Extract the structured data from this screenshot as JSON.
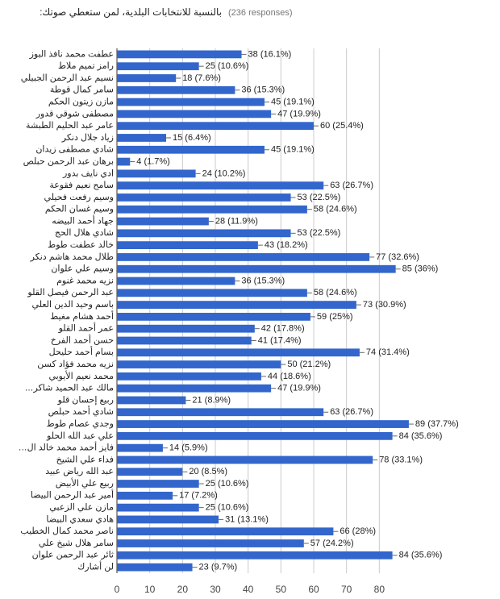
{
  "chart_data": {
    "type": "bar",
    "orientation": "horizontal",
    "title": "بالنسبة للانتخابات البلدية، لمن ستعطي صوتك:",
    "subtitle": "(236 responses)",
    "color": "#3366cc",
    "categories": [
      "عطفت محمد نافذ البوز",
      "رامز تميم ملاط",
      "نسيم عبد الرحمن الجبيلي",
      "سامر كمال قوطة",
      "مازن زيتون الحكم",
      "مصطفى شوقي قدور",
      "عامر عبد الحليم الطبشة",
      "زياد جلال دنكر",
      "شادي مصطفى زيدان",
      "برهان عبد الرحمن حبلص",
      "ادي نايف بدور",
      "سامح نعيم فقوعة",
      "وسيم رفعت فحيلي",
      "وسيم غسان الحكم",
      "جهاد أحمد البيضه",
      "شادي هلال الحج",
      "خالد عطفت طوط",
      "طلال محمد هاشم دنكر",
      "وسيم علي علوان",
      "نزيه محمد غنوم",
      "عبد الرحمن فيصل القلو",
      "باسم وحيد الدين العلي",
      "أحمد هشام مغيط",
      "عمر أحمد القلو",
      "حسن أحمد الفرخ",
      "بسام أحمد حليحل",
      "نزيه محمد فؤاد كسن",
      "محمد نعيم الأيوبي",
      "مالك عبد الحميد شاكر…",
      "ربيع إحسان قلو",
      "شادي أحمد حبلص",
      "وجدي عصام طوط",
      "علي عبد الله الحلو",
      "فايز أحمد محمد خالد ال…",
      "فداء علي الشيخ",
      "عبد الله رياض عبيد",
      "ربيع علي الأبيض",
      "أمير عبد الرحمن البيضا",
      "مازن علي الزعبي",
      "هادي سعدي البيضا",
      "ناصر محمد كمال الخطيب",
      "سامر هلال شيخ علي",
      "ثائر عبد الرحمن علوان",
      "لن أشارك"
    ],
    "values": [
      38,
      25,
      18,
      36,
      45,
      47,
      60,
      15,
      45,
      4,
      24,
      63,
      53,
      58,
      28,
      53,
      43,
      77,
      85,
      36,
      58,
      73,
      59,
      42,
      41,
      74,
      50,
      44,
      47,
      21,
      63,
      89,
      84,
      14,
      78,
      20,
      25,
      17,
      25,
      31,
      66,
      57,
      84,
      23
    ],
    "value_labels": [
      "38 (16.1%)",
      "25 (10.6%)",
      "18 (7.6%)",
      "36 (15.3%)",
      "45 (19.1%)",
      "47 (19.9%)",
      "60 (25.4%)",
      "15 (6.4%)",
      "45 (19.1%)",
      "4 (1.7%)",
      "24 (10.2%)",
      "63 (26.7%)",
      "53 (22.5%)",
      "58 (24.6%)",
      "28 (11.9%)",
      "53 (22.5%)",
      "43 (18.2%)",
      "77 (32.6%)",
      "85 (36%)",
      "36 (15.3%)",
      "58 (24.6%)",
      "73 (30.9%)",
      "59 (25%)",
      "42 (17.8%)",
      "41 (17.4%)",
      "74 (31.4%)",
      "50 (21.2%)",
      "44 (18.6%)",
      "47 (19.9%)",
      "21 (8.9%)",
      "63 (26.7%)",
      "89 (37.7%)",
      "84 (35.6%)",
      "14 (5.9%)",
      "78 (33.1%)",
      "20 (8.5%)",
      "25 (10.6%)",
      "17 (7.2%)",
      "25 (10.6%)",
      "31 (13.1%)",
      "66 (28%)",
      "57 (24.2%)",
      "84 (35.6%)",
      "23 (9.7%)"
    ],
    "xlim": [
      0,
      90
    ],
    "xticks": [
      0,
      10,
      20,
      30,
      40,
      50,
      60,
      70,
      80
    ],
    "grid": true
  }
}
